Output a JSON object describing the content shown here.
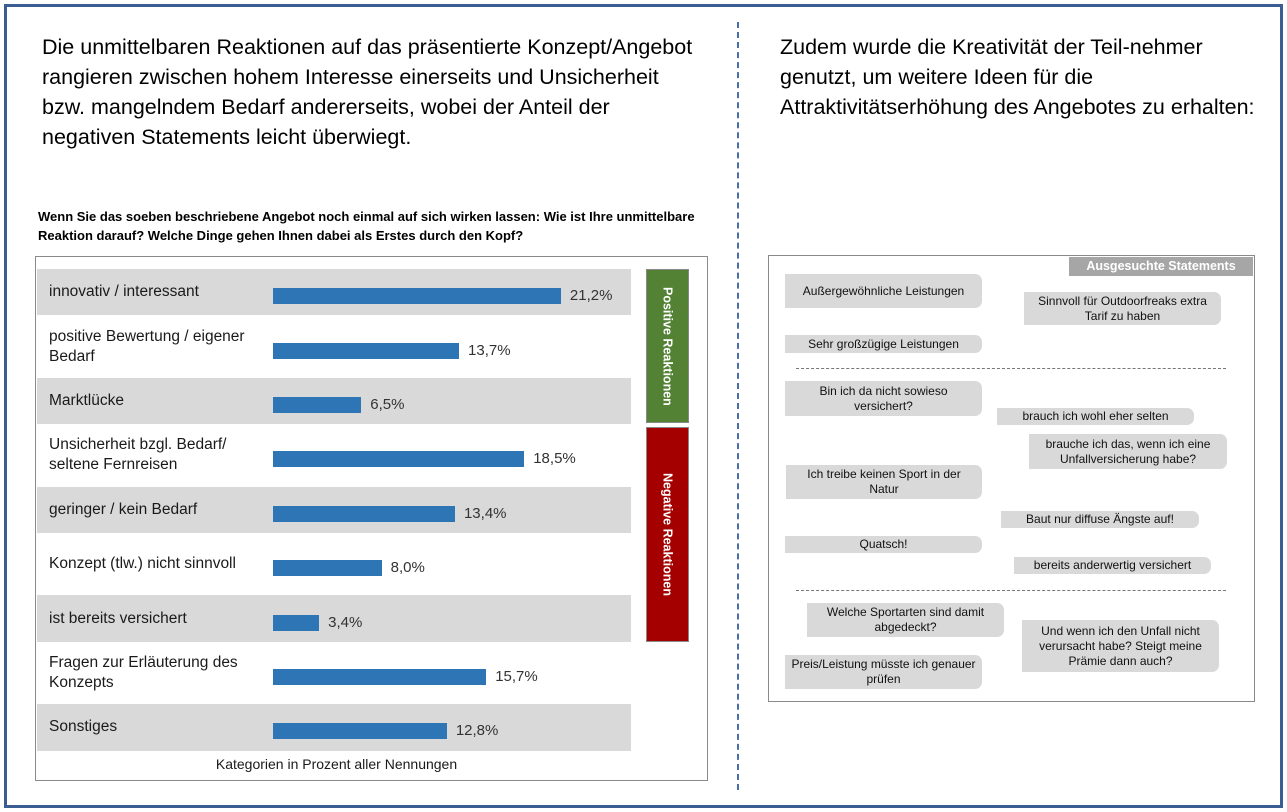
{
  "intro_left": "Die unmittelbaren Reaktionen auf das präsentierte Konzept/Angebot rangieren zwischen hohem Interesse einerseits und Unsicherheit bzw. mangelndem Bedarf andererseits, wobei der Anteil der negativen Statements leicht überwiegt.",
  "intro_right": "Zudem wurde die Kreativität der Teil-nehmer genutzt, um weitere Ideen für die Attraktivitätserhöhung des Angebotes zu erhalten:",
  "chart_data": {
    "type": "bar",
    "orientation": "horizontal",
    "title": "Wenn Sie das soeben beschriebene Angebot noch einmal auf sich wirken lassen: Wie ist Ihre unmittelbare Reaktion darauf? Welche Dinge gehen Ihnen dabei als Erstes durch den Kopf?",
    "xlabel": "Kategorien in Prozent aller Nennungen",
    "categories": [
      "innovativ / interessant",
      "positive Bewertung / eigener Bedarf",
      "Marktlücke",
      "Unsicherheit bzgl. Bedarf/ seltene Fernreisen",
      "geringer / kein Bedarf",
      "Konzept  (tlw.) nicht sinnvoll",
      "ist bereits versichert",
      "Fragen zur Erläuterung des Konzepts",
      "Sonstiges"
    ],
    "values": [
      21.2,
      13.7,
      6.5,
      18.5,
      13.4,
      8.0,
      3.4,
      15.7,
      12.8
    ],
    "value_labels": [
      "21,2%",
      "13,7%",
      "6,5%",
      "18,5%",
      "13,4%",
      "8,0%",
      "3,4%",
      "15,7%",
      "12,8%"
    ],
    "groups": [
      {
        "label": "Positive Reaktionen",
        "color": "#548235"
      },
      {
        "label": "Negative Reaktionen",
        "color": "#a50000"
      }
    ],
    "bar_color": "#2e75b6"
  },
  "statements": {
    "header": "Ausgesuchte  Statements",
    "items": [
      "Außergewöhnliche Leistungen",
      "Sinnvoll für Outdoorfreaks  extra Tarif zu haben",
      "Sehr großzügige Leistungen",
      "Bin ich da nicht sowieso versichert?",
      "brauch ich wohl eher selten",
      "brauche ich das, wenn ich eine Unfallversicherung  habe?",
      "Ich treibe keinen Sport in der Natur",
      "Baut nur diffuse Ängste auf!",
      "Quatsch!",
      "bereits anderwertig versichert",
      "Welche Sportarten sind damit abgedeckt?",
      "Und wenn ich den Unfall nicht verursacht  habe? Steigt meine Prämie dann auch?",
      "Preis/Leistung müsste ich genauer prüfen"
    ]
  }
}
